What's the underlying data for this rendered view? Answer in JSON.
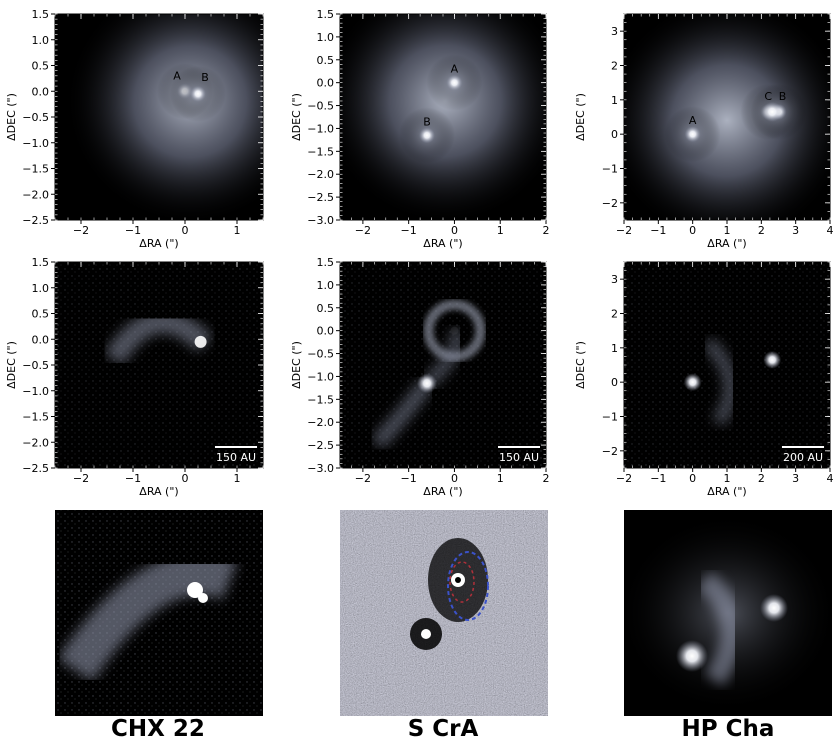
{
  "figure": {
    "columns": [
      {
        "object": "CHX 22",
        "row1": {
          "xlabel": "ΔRA (\")",
          "ylabel": "ΔDEC (\")",
          "xticks": [
            "−2",
            "−1",
            "0",
            "1"
          ],
          "yticks": [
            "1.5",
            "1.0",
            "0.5",
            "0.0",
            "−0.5",
            "−1.0",
            "−1.5",
            "−2.0",
            "−2.5"
          ],
          "labels": [
            "A",
            "B"
          ]
        },
        "row2": {
          "xlabel": "ΔRA (\")",
          "ylabel": "ΔDEC (\")",
          "xticks": [
            "−2",
            "−1",
            "0",
            "1"
          ],
          "yticks": [
            "1.5",
            "1.0",
            "0.5",
            "0.0",
            "−0.5",
            "−1.0",
            "−1.5",
            "−2.0",
            "−2.5"
          ],
          "scalebar": "150 AU"
        }
      },
      {
        "object": "S CrA",
        "row1": {
          "xlabel": "ΔRA (\")",
          "ylabel": "ΔDEC (\")",
          "xticks": [
            "−2",
            "−1",
            "0",
            "1",
            "2"
          ],
          "yticks": [
            "1.5",
            "1.0",
            "0.5",
            "0.0",
            "−0.5",
            "−1.0",
            "−1.5",
            "−2.0",
            "−2.5",
            "−3.0"
          ],
          "labels": [
            "A",
            "B"
          ]
        },
        "row2": {
          "xlabel": "ΔRA (\")",
          "ylabel": "ΔDEC (\")",
          "xticks": [
            "−2",
            "−1",
            "0",
            "1",
            "2"
          ],
          "yticks": [
            "1.5",
            "1.0",
            "0.5",
            "0.0",
            "−0.5",
            "−1.0",
            "−1.5",
            "−2.0",
            "−2.5",
            "−3.0"
          ],
          "scalebar": "150 AU"
        }
      },
      {
        "object": "HP Cha",
        "row1": {
          "xlabel": "ΔRA (\")",
          "ylabel": "ΔDEC (\")",
          "xticks": [
            "−2",
            "−1",
            "0",
            "1",
            "2",
            "3",
            "4"
          ],
          "yticks": [
            "3",
            "2",
            "1",
            "0",
            "−1",
            "−2"
          ],
          "labels": [
            "A",
            "C",
            "B"
          ]
        },
        "row2": {
          "xlabel": "ΔRA (\")",
          "ylabel": "ΔDEC (\")",
          "xticks": [
            "−2",
            "−1",
            "0",
            "1",
            "2",
            "3",
            "4"
          ],
          "yticks": [
            "3",
            "2",
            "1",
            "0",
            "−1",
            "−2"
          ],
          "scalebar": "200 AU"
        }
      }
    ]
  }
}
